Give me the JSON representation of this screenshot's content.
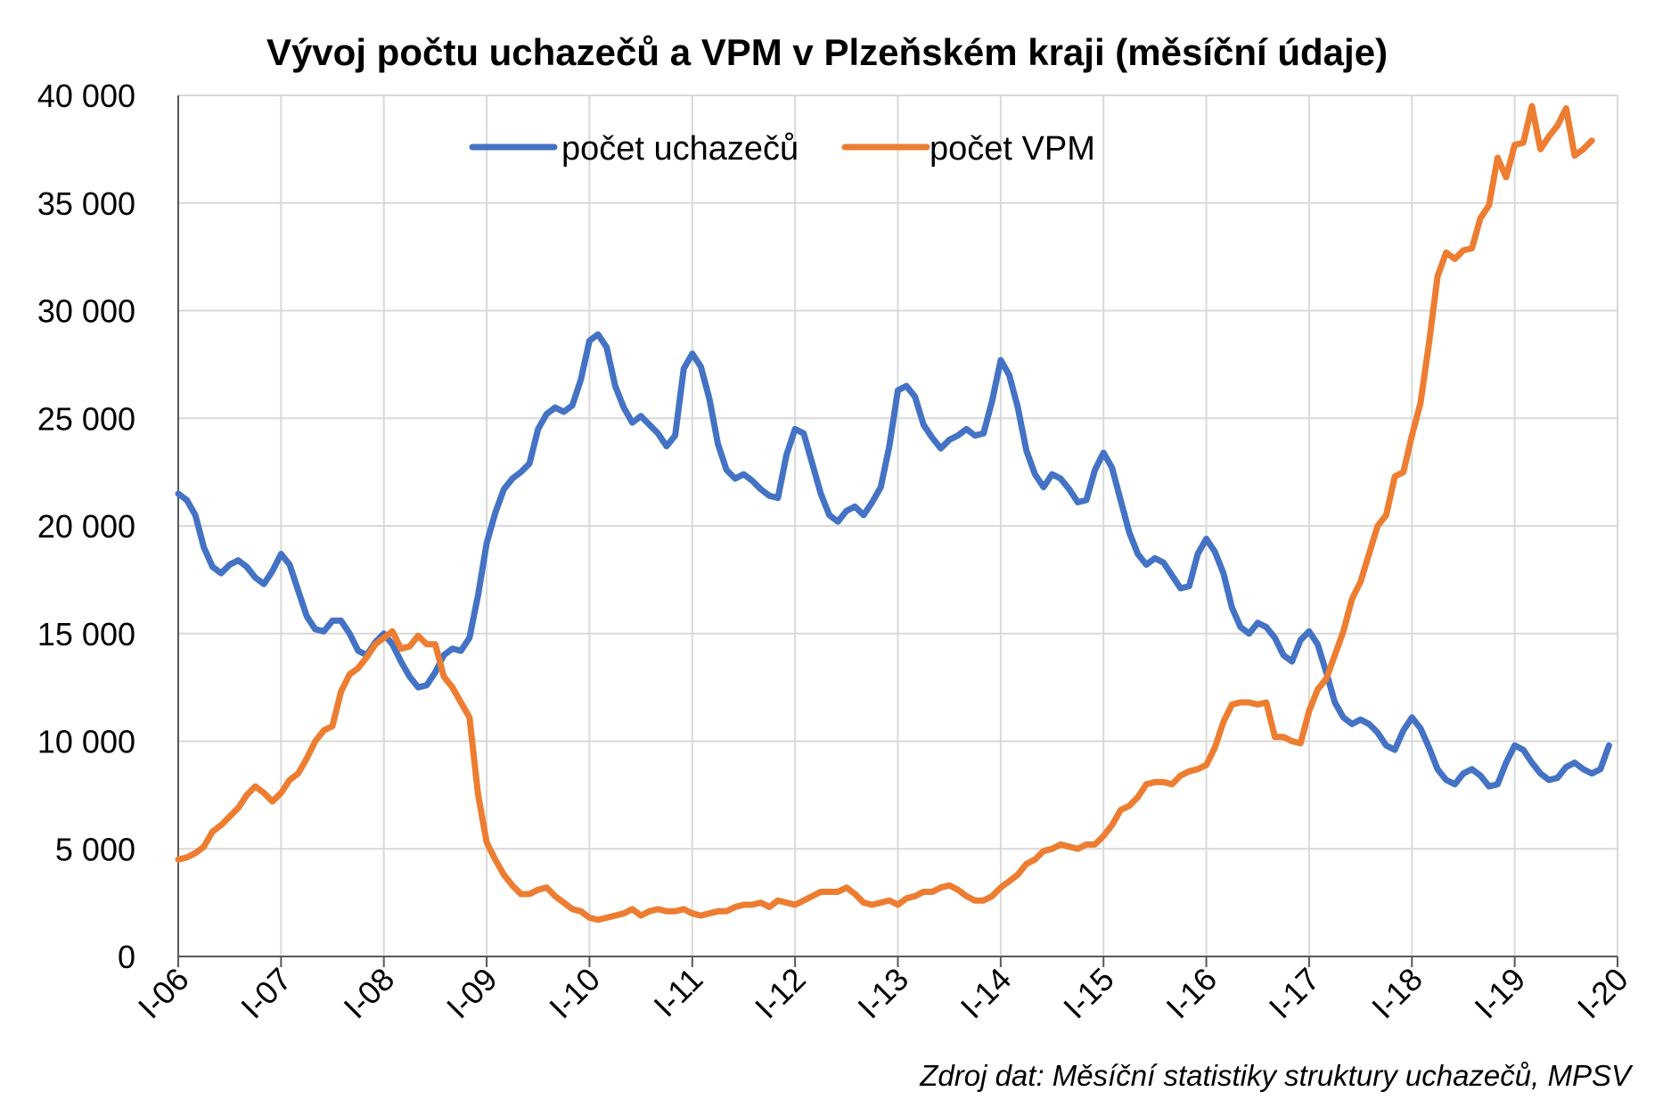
{
  "chart_data": {
    "type": "line",
    "title": "Vývoj počtu uchazečů a VPM v Plzeňském kraji (měsíční údaje)",
    "source": "Zdroj dat: Měsíční statistiky struktury uchazečů, MPSV",
    "xlabel": "",
    "ylabel": "",
    "ylim": [
      0,
      40000
    ],
    "yticks": [
      0,
      5000,
      10000,
      15000,
      20000,
      25000,
      30000,
      35000,
      40000
    ],
    "ytick_labels": [
      "0",
      "5 000",
      "10 000",
      "15 000",
      "20 000",
      "25 000",
      "30 000",
      "35 000",
      "40 000"
    ],
    "x_tick_labels": [
      "I-06",
      "I-07",
      "I-08",
      "I-09",
      "I-10",
      "I-11",
      "I-12",
      "I-13",
      "I-14",
      "I-15",
      "I-16",
      "I-17",
      "I-18",
      "I-19",
      "I-20"
    ],
    "grid": true,
    "legend_position": "top-center",
    "series": [
      {
        "name": "počet uchazečů",
        "color": "#4472C4",
        "values": [
          21500,
          21200,
          20500,
          19000,
          18100,
          17800,
          18200,
          18400,
          18100,
          17600,
          17300,
          17900,
          18700,
          18200,
          17000,
          15800,
          15200,
          15100,
          15600,
          15600,
          15000,
          14200,
          14000,
          14600,
          15000,
          14500,
          13700,
          13000,
          12500,
          12600,
          13200,
          14000,
          14300,
          14200,
          14800,
          16800,
          19200,
          20600,
          21700,
          22200,
          22500,
          22900,
          24500,
          25200,
          25500,
          25300,
          25600,
          26800,
          28600,
          28900,
          28300,
          26500,
          25500,
          24800,
          25100,
          24700,
          24300,
          23700,
          24200,
          27300,
          28000,
          27400,
          25900,
          23800,
          22600,
          22200,
          22400,
          22100,
          21700,
          21400,
          21300,
          23300,
          24500,
          24300,
          22900,
          21500,
          20500,
          20200,
          20700,
          20900,
          20500,
          21100,
          21800,
          23700,
          26300,
          26500,
          26000,
          24700,
          24100,
          23600,
          24000,
          24200,
          24500,
          24200,
          24300,
          25800,
          27700,
          27000,
          25500,
          23500,
          22400,
          21800,
          22400,
          22200,
          21700,
          21100,
          21200,
          22600,
          23400,
          22700,
          21200,
          19700,
          18700,
          18200,
          18500,
          18300,
          17700,
          17100,
          17200,
          18700,
          19400,
          18800,
          17800,
          16200,
          15300,
          15000,
          15500,
          15300,
          14800,
          14000,
          13700,
          14700,
          15100,
          14500,
          13200,
          11800,
          11100,
          10800,
          11000,
          10800,
          10400,
          9800,
          9600,
          10500,
          11100,
          10600,
          9700,
          8700,
          8200,
          8000,
          8500,
          8700,
          8400,
          7900,
          8000,
          9000,
          9800,
          9600,
          9000,
          8500,
          8200,
          8300,
          8800,
          9000,
          8700,
          8500,
          8700,
          9800
        ]
      },
      {
        "name": "počet VPM",
        "color": "#ED7D31",
        "values": [
          4500,
          4600,
          4800,
          5100,
          5800,
          6100,
          6500,
          6900,
          7500,
          7900,
          7600,
          7200,
          7600,
          8200,
          8500,
          9200,
          10000,
          10500,
          10700,
          12300,
          13100,
          13400,
          13900,
          14500,
          14800,
          15100,
          14300,
          14400,
          14900,
          14500,
          14500,
          13000,
          12500,
          11800,
          11100,
          7500,
          5300,
          4500,
          3800,
          3300,
          2900,
          2900,
          3100,
          3200,
          2800,
          2500,
          2200,
          2100,
          1800,
          1700,
          1800,
          1900,
          2000,
          2200,
          1900,
          2100,
          2200,
          2100,
          2100,
          2200,
          2000,
          1900,
          2000,
          2100,
          2100,
          2300,
          2400,
          2400,
          2500,
          2300,
          2600,
          2500,
          2400,
          2600,
          2800,
          3000,
          3000,
          3000,
          3200,
          2900,
          2500,
          2400,
          2500,
          2600,
          2400,
          2700,
          2800,
          3000,
          3000,
          3200,
          3300,
          3100,
          2800,
          2600,
          2600,
          2800,
          3200,
          3500,
          3800,
          4300,
          4500,
          4900,
          5000,
          5200,
          5100,
          5000,
          5200,
          5200,
          5600,
          6100,
          6800,
          7000,
          7400,
          8000,
          8100,
          8100,
          8000,
          8400,
          8600,
          8700,
          8900,
          9700,
          10900,
          11700,
          11800,
          11800,
          11700,
          11800,
          10200,
          10200,
          10000,
          9900,
          11400,
          12400,
          12900,
          14000,
          15100,
          16600,
          17400,
          18700,
          20000,
          20500,
          22300,
          22500,
          24200,
          25700,
          28500,
          31600,
          32700,
          32400,
          32800,
          32900,
          34300,
          34900,
          37100,
          36200,
          37700,
          37800,
          39500,
          37500,
          38100,
          38600,
          39400,
          37200,
          37500,
          37900
        ]
      }
    ]
  }
}
